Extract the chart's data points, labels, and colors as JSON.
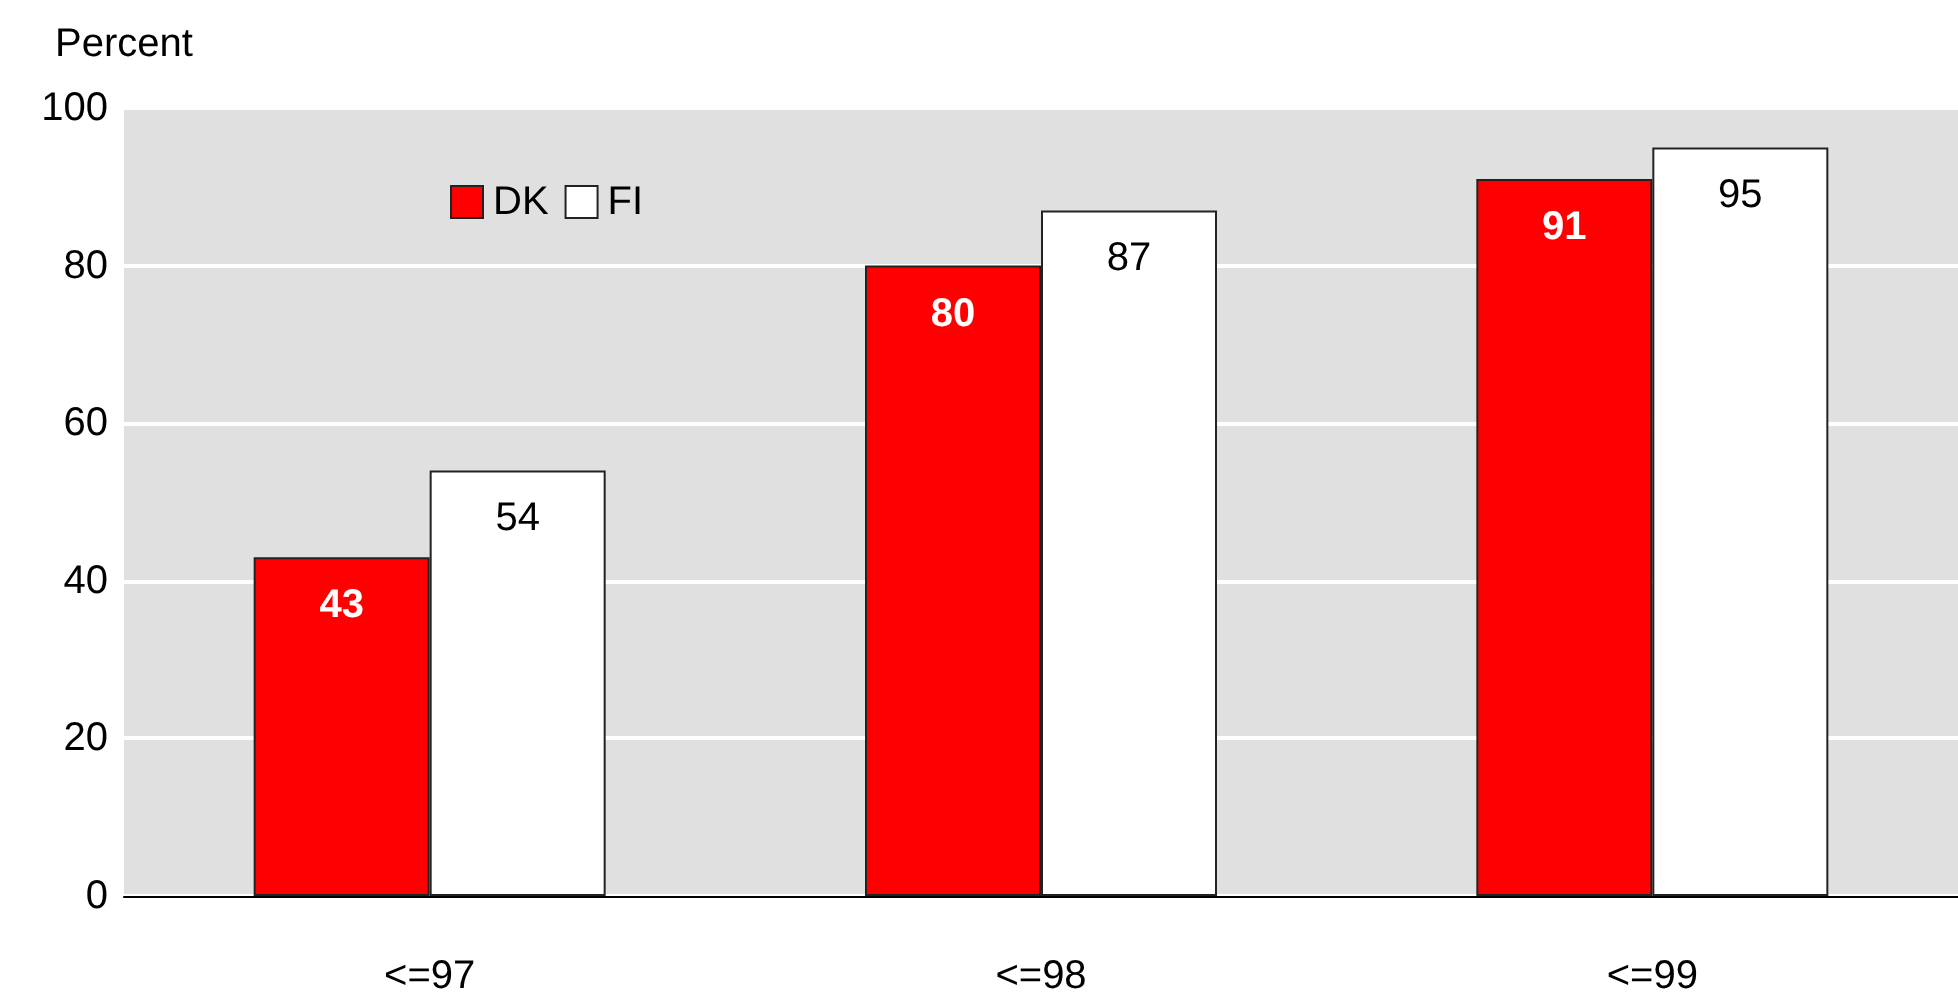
{
  "chart_data": {
    "type": "bar",
    "ylabel": "Percent",
    "categories": [
      "<=97",
      "<=98",
      "<=99"
    ],
    "series": [
      {
        "name": "DK",
        "color": "#ff0000",
        "values": [
          43,
          80,
          91
        ]
      },
      {
        "name": "FI",
        "color": "#ffffff",
        "values": [
          54,
          87,
          95
        ]
      }
    ],
    "ylim": [
      0,
      100
    ],
    "yticks": [
      0,
      20,
      40,
      60,
      80,
      100
    ],
    "grid": "y",
    "legend": "top left",
    "data_labels": true
  }
}
